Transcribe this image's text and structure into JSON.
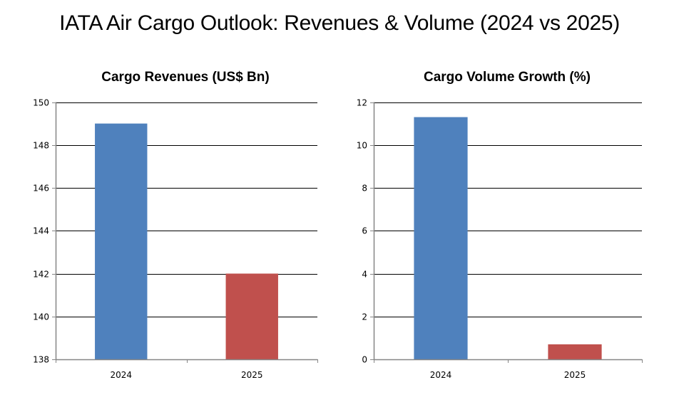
{
  "title": "IATA Air Cargo Outlook: Revenues & Volume (2024 vs 2025)",
  "colors": {
    "bar_2024": "#4F81BD",
    "bar_2025": "#C0504D",
    "gridline": "#000000",
    "axis": "#868686"
  },
  "chart_data": [
    {
      "type": "bar",
      "title": "Cargo Revenues (US$ Bn)",
      "categories": [
        "2024",
        "2025"
      ],
      "values": [
        149,
        142
      ],
      "xlabel": "",
      "ylabel": "",
      "ylim": [
        138,
        150
      ],
      "yticks": [
        138,
        140,
        142,
        144,
        146,
        148,
        150
      ],
      "grid": true,
      "legend": "none"
    },
    {
      "type": "bar",
      "title": "Cargo Volume Growth (%)",
      "categories": [
        "2024",
        "2025"
      ],
      "values": [
        11.3,
        0.7
      ],
      "xlabel": "",
      "ylabel": "",
      "ylim": [
        0,
        12
      ],
      "yticks": [
        0,
        2,
        4,
        6,
        8,
        10,
        12
      ],
      "grid": true,
      "legend": "none"
    }
  ]
}
